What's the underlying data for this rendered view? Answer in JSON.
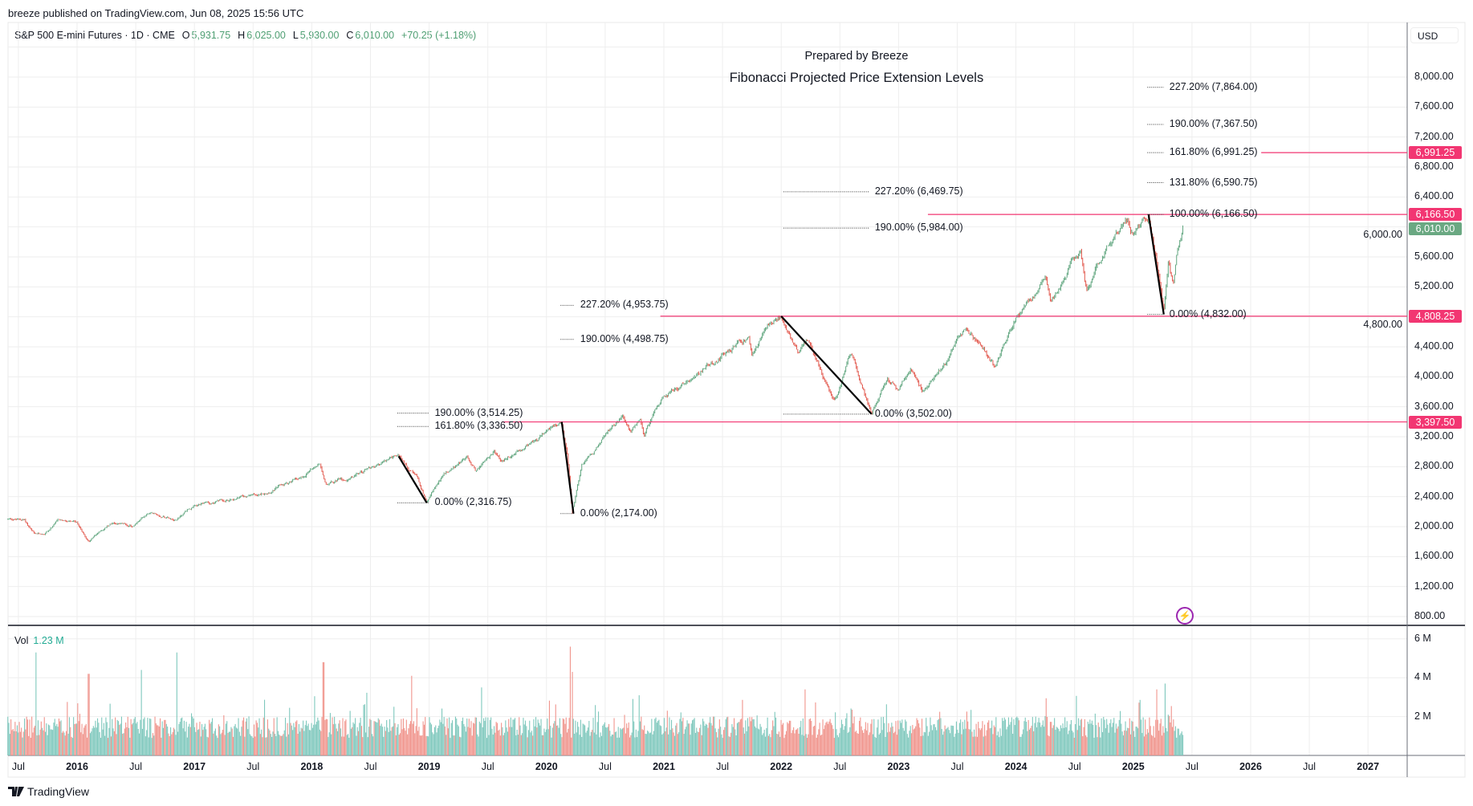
{
  "header": {
    "publisher": "breeze published on TradingView.com, Jun 08, 2025 15:56 UTC",
    "symbol": "S&P 500 E-mini Futures · 1D · CME",
    "open_label": "O",
    "open": "5,931.75",
    "high_label": "H",
    "high": "6,025.00",
    "low_label": "L",
    "low": "5,930.00",
    "close_label": "C",
    "close": "6,010.00",
    "change": "+70.25 (+1.18%)",
    "currency": "USD"
  },
  "annotations": {
    "prepared_by": "Prepared by Breeze",
    "title": "Fibonacci Projected Price Extension Levels"
  },
  "volume": {
    "label": "Vol",
    "value": "1.23 M",
    "ticks": [
      "6 M",
      "4 M",
      "2 M"
    ],
    "tick_values": [
      6,
      4,
      2
    ]
  },
  "footer": {
    "brand": "TradingView"
  },
  "colors": {
    "up": "#5fa57e",
    "down": "#e2574c",
    "vol_up": "#7fc8bd",
    "vol_down": "#f0948c",
    "level": "#f23672",
    "last": "#6aa882",
    "swing": "#000000"
  },
  "chart_data": {
    "type": "candlestick",
    "title": "Fibonacci Projected Price Extension Levels",
    "ylabel": "USD",
    "ylim": [
      800,
      8000
    ],
    "xlim": [
      2015.41,
      2027.75
    ],
    "y_ticks": [
      "8,000.00",
      "7,600.00",
      "7,200.00",
      "6,800.00",
      "6,400.00",
      "6,000.00",
      "5,600.00",
      "5,200.00",
      "4,800.00",
      "4,400.00",
      "4,000.00",
      "3,600.00",
      "3,200.00",
      "2,800.00",
      "2,400.00",
      "2,000.00",
      "1,600.00",
      "1,200.00",
      "800.00"
    ],
    "y_tick_values": [
      8000,
      7600,
      7200,
      6800,
      6400,
      6000,
      5600,
      5200,
      4800,
      4400,
      4000,
      3600,
      3200,
      2800,
      2400,
      2000,
      1600,
      1200,
      800
    ],
    "x_ticks": [
      {
        "label": "Jul",
        "t": 2015.5,
        "year": false
      },
      {
        "label": "2016",
        "t": 2016,
        "year": true
      },
      {
        "label": "Jul",
        "t": 2016.5,
        "year": false
      },
      {
        "label": "2017",
        "t": 2017,
        "year": true
      },
      {
        "label": "Jul",
        "t": 2017.5,
        "year": false
      },
      {
        "label": "2018",
        "t": 2018,
        "year": true
      },
      {
        "label": "Jul",
        "t": 2018.5,
        "year": false
      },
      {
        "label": "2019",
        "t": 2019,
        "year": true
      },
      {
        "label": "Jul",
        "t": 2019.5,
        "year": false
      },
      {
        "label": "2020",
        "t": 2020,
        "year": true
      },
      {
        "label": "Jul",
        "t": 2020.5,
        "year": false
      },
      {
        "label": "2021",
        "t": 2021,
        "year": true
      },
      {
        "label": "Jul",
        "t": 2021.5,
        "year": false
      },
      {
        "label": "2022",
        "t": 2022,
        "year": true
      },
      {
        "label": "Jul",
        "t": 2022.5,
        "year": false
      },
      {
        "label": "2023",
        "t": 2023,
        "year": true
      },
      {
        "label": "Jul",
        "t": 2023.5,
        "year": false
      },
      {
        "label": "2024",
        "t": 2024,
        "year": true
      },
      {
        "label": "Jul",
        "t": 2024.5,
        "year": false
      },
      {
        "label": "2025",
        "t": 2025,
        "year": true
      },
      {
        "label": "Jul",
        "t": 2025.5,
        "year": false
      },
      {
        "label": "2026",
        "t": 2026,
        "year": true
      },
      {
        "label": "Jul",
        "t": 2026.5,
        "year": false
      },
      {
        "label": "2027",
        "t": 2027,
        "year": true
      }
    ],
    "price_path": [
      [
        2015.41,
        2100
      ],
      [
        2015.55,
        2090
      ],
      [
        2015.64,
        1880
      ],
      [
        2015.72,
        1900
      ],
      [
        2015.85,
        2080
      ],
      [
        2016.0,
        2030
      ],
      [
        2016.1,
        1820
      ],
      [
        2016.3,
        2060
      ],
      [
        2016.48,
        2000
      ],
      [
        2016.6,
        2170
      ],
      [
        2016.85,
        2120
      ],
      [
        2016.95,
        2250
      ],
      [
        2017.3,
        2360
      ],
      [
        2017.6,
        2450
      ],
      [
        2017.9,
        2650
      ],
      [
        2018.07,
        2870
      ],
      [
        2018.12,
        2600
      ],
      [
        2018.3,
        2650
      ],
      [
        2018.5,
        2780
      ],
      [
        2018.74,
        2940
      ],
      [
        2018.9,
        2640
      ],
      [
        2018.98,
        2320
      ],
      [
        2019.1,
        2650
      ],
      [
        2019.32,
        2940
      ],
      [
        2019.4,
        2750
      ],
      [
        2019.55,
        3000
      ],
      [
        2019.62,
        2850
      ],
      [
        2019.85,
        3100
      ],
      [
        2020.13,
        3397.5
      ],
      [
        2020.18,
        2900
      ],
      [
        2020.22,
        2174
      ],
      [
        2020.3,
        2800
      ],
      [
        2020.45,
        3100
      ],
      [
        2020.65,
        3500
      ],
      [
        2020.72,
        3250
      ],
      [
        2020.8,
        3450
      ],
      [
        2020.83,
        3250
      ],
      [
        2021.0,
        3750
      ],
      [
        2021.2,
        3950
      ],
      [
        2021.5,
        4300
      ],
      [
        2021.72,
        4500
      ],
      [
        2021.75,
        4300
      ],
      [
        2021.9,
        4700
      ],
      [
        2022.0,
        4808.25
      ],
      [
        2022.15,
        4300
      ],
      [
        2022.22,
        4500
      ],
      [
        2022.3,
        4200
      ],
      [
        2022.45,
        3650
      ],
      [
        2022.6,
        4300
      ],
      [
        2022.77,
        3502
      ],
      [
        2022.9,
        4000
      ],
      [
        2023.0,
        3850
      ],
      [
        2023.1,
        4150
      ],
      [
        2023.2,
        3850
      ],
      [
        2023.4,
        4200
      ],
      [
        2023.55,
        4600
      ],
      [
        2023.7,
        4400
      ],
      [
        2023.82,
        4150
      ],
      [
        2024.0,
        4800
      ],
      [
        2024.25,
        5300
      ],
      [
        2024.3,
        5000
      ],
      [
        2024.5,
        5600
      ],
      [
        2024.55,
        5700
      ],
      [
        2024.6,
        5200
      ],
      [
        2024.8,
        5800
      ],
      [
        2024.95,
        6100
      ],
      [
        2025.0,
        5900
      ],
      [
        2025.13,
        6166.5
      ],
      [
        2025.2,
        5600
      ],
      [
        2025.26,
        4832
      ],
      [
        2025.3,
        5500
      ],
      [
        2025.34,
        5150
      ],
      [
        2025.38,
        5700
      ],
      [
        2025.43,
        6010
      ]
    ],
    "swings": [
      {
        "from": [
          2018.74,
          2940
        ],
        "to": [
          2018.98,
          2316.75
        ]
      },
      {
        "from": [
          2020.13,
          3397.5
        ],
        "to": [
          2020.23,
          2174
        ]
      },
      {
        "from": [
          2022.0,
          4808.25
        ],
        "to": [
          2022.77,
          3502
        ]
      },
      {
        "from": [
          2025.13,
          6166.5
        ],
        "to": [
          2025.26,
          4832
        ]
      }
    ],
    "fib_groups": [
      {
        "from_t": 2018.73,
        "to_t": 2019.0,
        "levels": [
          {
            "label": "190.00% (3,514.25)",
            "price": 3514.25
          },
          {
            "label": "161.80% (3,336.50)",
            "price": 3336.5
          },
          {
            "label": "0.00% (2,316.75)",
            "price": 2316.75
          }
        ]
      },
      {
        "from_t": 2020.12,
        "to_t": 2020.24,
        "levels": [
          {
            "label": "227.20% (4,953.75)",
            "price": 4953.75
          },
          {
            "label": "190.00% (4,498.75)",
            "price": 4498.75
          },
          {
            "label": "0.00% (2,174.00)",
            "price": 2174
          }
        ]
      },
      {
        "from_t": 2022.02,
        "to_t": 2022.75,
        "levels": [
          {
            "label": "227.20% (6,469.75)",
            "price": 6469.75
          },
          {
            "label": "190.00% (5,984.00)",
            "price": 5984
          },
          {
            "label": "0.00% (3,502.00)",
            "price": 3502
          }
        ]
      },
      {
        "from_t": 2025.12,
        "to_t": 2025.26,
        "levels": [
          {
            "label": "227.20% (7,864.00)",
            "price": 7864
          },
          {
            "label": "190.00% (7,367.50)",
            "price": 7367.5
          },
          {
            "label": "161.80% (6,991.25)",
            "price": 6991.25
          },
          {
            "label": "131.80% (6,590.75)",
            "price": 6590.75
          },
          {
            "label": "100.00% (6,166.50)",
            "price": 6166.5
          },
          {
            "label": "0.00% (4,832.00)",
            "price": 4832
          }
        ]
      }
    ],
    "horizontal_levels": [
      {
        "price": 6991.25,
        "label": "6,991.25",
        "from_t": 2026.09
      },
      {
        "price": 6166.5,
        "label": "6,166.50",
        "from_t": 2023.25
      },
      {
        "price": 4808.25,
        "label": "4,808.25",
        "from_t": 2020.97
      },
      {
        "price": 3397.5,
        "label": "3,397.50",
        "from_t": 2019.62
      }
    ],
    "last_price": {
      "price": 6010,
      "label": "6,010.00"
    },
    "volume_spikes_m": [
      [
        2015.65,
        5.3
      ],
      [
        2016.1,
        4.2
      ],
      [
        2016.55,
        4.4
      ],
      [
        2016.85,
        5.3
      ],
      [
        2018.1,
        4.8
      ],
      [
        2018.85,
        4.1
      ],
      [
        2019.45,
        3.5
      ],
      [
        2020.2,
        5.6
      ],
      [
        2020.22,
        4.3
      ],
      [
        2022.2,
        3.4
      ],
      [
        2025.2,
        3.4
      ],
      [
        2025.27,
        3.7
      ]
    ]
  }
}
